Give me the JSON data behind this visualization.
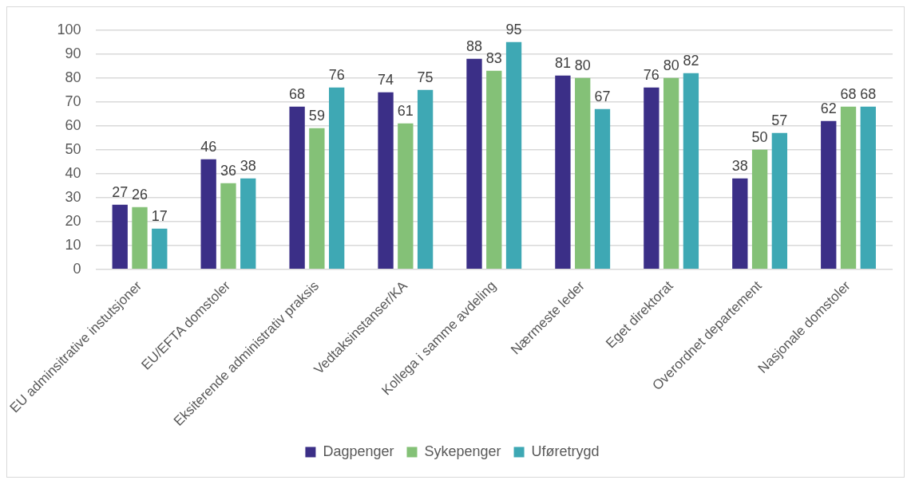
{
  "chart_data": {
    "type": "bar",
    "categories": [
      "EU adminsitrative instutsjoner",
      "EU/EFTA domstoler",
      "Eksiterende administrativ praksis",
      "Vedtaksinstanser/KA",
      "Kollega i samme avdeling",
      "Nærmeste leder",
      "Eget direktorat",
      "Overordnet departement",
      "Nasjonale domstoler"
    ],
    "series": [
      {
        "name": "Dagpenger",
        "color": "#3b2f87",
        "values": [
          27,
          46,
          68,
          74,
          88,
          81,
          76,
          38,
          62
        ]
      },
      {
        "name": "Sykepenger",
        "color": "#84c177",
        "values": [
          26,
          36,
          59,
          61,
          83,
          80,
          80,
          50,
          68
        ]
      },
      {
        "name": "Uføretrygd",
        "color": "#3ea8b4",
        "values": [
          17,
          38,
          76,
          75,
          95,
          67,
          82,
          57,
          68
        ]
      }
    ],
    "ylim": [
      0,
      100
    ],
    "yticks": [
      0,
      10,
      20,
      30,
      40,
      50,
      60,
      70,
      80,
      90,
      100
    ],
    "grid": "y",
    "legend": "bottom",
    "data_labels": true
  }
}
